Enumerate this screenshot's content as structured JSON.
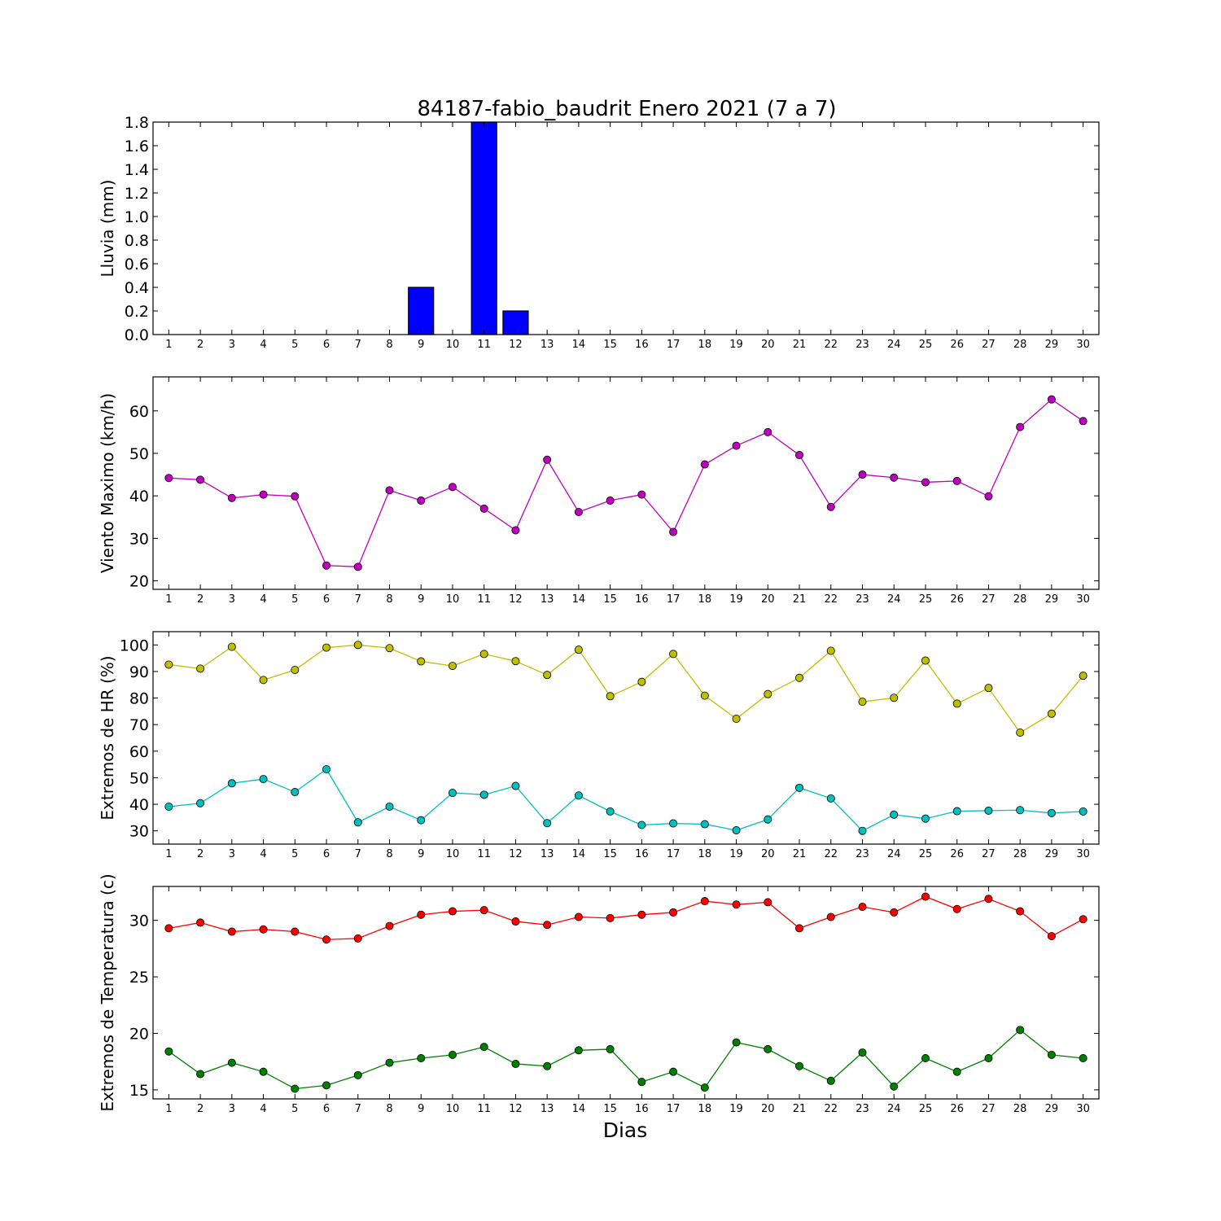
{
  "title": "84187-fabio_baudrit Enero 2021  (7 a 7)",
  "xlabel": "Dias",
  "chart_data": [
    {
      "type": "bar",
      "ylabel": "Lluvia (mm)",
      "ylim": [
        0,
        1.8
      ],
      "yticks": [
        "0.0",
        "0.2",
        "0.4",
        "0.6",
        "0.8",
        "1.0",
        "1.2",
        "1.4",
        "1.6",
        "1.8"
      ],
      "x": [
        1,
        2,
        3,
        4,
        5,
        6,
        7,
        8,
        9,
        10,
        11,
        12,
        13,
        14,
        15,
        16,
        17,
        18,
        19,
        20,
        21,
        22,
        23,
        24,
        25,
        26,
        27,
        28,
        29,
        30
      ],
      "series": [
        {
          "color": "#0000ff",
          "values": [
            0,
            0,
            0,
            0,
            0,
            0,
            0,
            0,
            0.4,
            0,
            1.8,
            0.2,
            0,
            0,
            0,
            0,
            0,
            0,
            0,
            0,
            0,
            0,
            0,
            0,
            0,
            0,
            0,
            0,
            0,
            0
          ]
        }
      ]
    },
    {
      "type": "line",
      "ylabel": "Viento Maximo (km/h)",
      "ylim": [
        18,
        68
      ],
      "yticks": [
        "20",
        "30",
        "40",
        "50",
        "60"
      ],
      "x": [
        1,
        2,
        3,
        4,
        5,
        6,
        7,
        8,
        9,
        10,
        11,
        12,
        13,
        14,
        15,
        16,
        17,
        18,
        19,
        20,
        21,
        22,
        23,
        24,
        25,
        26,
        27,
        28,
        29,
        30
      ],
      "series": [
        {
          "color": "#bf00bf",
          "values": [
            44.2,
            43.8,
            39.5,
            40.3,
            39.9,
            23.6,
            23.3,
            41.3,
            38.9,
            42.1,
            37.0,
            31.9,
            48.5,
            36.2,
            38.9,
            40.3,
            31.5,
            47.4,
            51.8,
            55.0,
            49.6,
            37.4,
            45.0,
            44.3,
            43.2,
            43.5,
            39.9,
            56.2,
            62.7,
            57.6
          ]
        }
      ]
    },
    {
      "type": "line",
      "ylabel": "Extremos de HR (%)",
      "ylim": [
        25,
        105
      ],
      "yticks": [
        "30",
        "40",
        "50",
        "60",
        "70",
        "80",
        "90",
        "100"
      ],
      "x": [
        1,
        2,
        3,
        4,
        5,
        6,
        7,
        8,
        9,
        10,
        11,
        12,
        13,
        14,
        15,
        16,
        17,
        18,
        19,
        20,
        21,
        22,
        23,
        24,
        25,
        26,
        27,
        28,
        29,
        30
      ],
      "series": [
        {
          "color": "#bfbf00",
          "values": [
            92.6,
            91.1,
            99.3,
            86.8,
            90.6,
            99.0,
            100.0,
            98.8,
            93.8,
            92.1,
            96.6,
            93.9,
            88.7,
            98.2,
            80.7,
            86.1,
            96.6,
            80.9,
            72.2,
            81.5,
            87.6,
            97.8,
            78.6,
            80.1,
            94.1,
            77.9,
            83.8,
            67.0,
            74.1,
            88.4
          ]
        },
        {
          "color": "#00bfbf",
          "values": [
            39.1,
            40.4,
            47.9,
            49.5,
            44.6,
            53.2,
            33.2,
            39.1,
            34.0,
            44.3,
            43.6,
            46.9,
            32.9,
            43.3,
            37.3,
            32.2,
            32.8,
            32.5,
            30.2,
            34.3,
            46.2,
            42.2,
            30.0,
            36.1,
            34.6,
            37.4,
            37.6,
            37.8,
            36.7,
            37.3
          ]
        }
      ]
    },
    {
      "type": "line",
      "ylabel": "Extremos de Temperatura (c)",
      "ylim": [
        14.2,
        33.0
      ],
      "yticks": [
        "15",
        "20",
        "25",
        "30"
      ],
      "x": [
        1,
        2,
        3,
        4,
        5,
        6,
        7,
        8,
        9,
        10,
        11,
        12,
        13,
        14,
        15,
        16,
        17,
        18,
        19,
        20,
        21,
        22,
        23,
        24,
        25,
        26,
        27,
        28,
        29,
        30
      ],
      "series": [
        {
          "color": "#ff0000",
          "values": [
            29.3,
            29.8,
            29.0,
            29.2,
            29.0,
            28.3,
            28.4,
            29.5,
            30.5,
            30.8,
            30.9,
            29.9,
            29.6,
            30.3,
            30.2,
            30.5,
            30.7,
            31.7,
            31.4,
            31.6,
            29.3,
            30.3,
            31.2,
            30.7,
            32.1,
            31.0,
            31.9,
            30.8,
            28.6,
            30.1
          ]
        },
        {
          "color": "#008000",
          "values": [
            18.4,
            16.4,
            17.4,
            16.6,
            15.1,
            15.4,
            16.3,
            17.4,
            17.8,
            18.1,
            18.8,
            17.3,
            17.1,
            18.5,
            18.6,
            15.7,
            16.6,
            15.2,
            19.2,
            18.6,
            17.1,
            15.8,
            18.3,
            15.3,
            17.8,
            16.6,
            17.8,
            20.3,
            18.1,
            17.8
          ]
        }
      ]
    }
  ]
}
